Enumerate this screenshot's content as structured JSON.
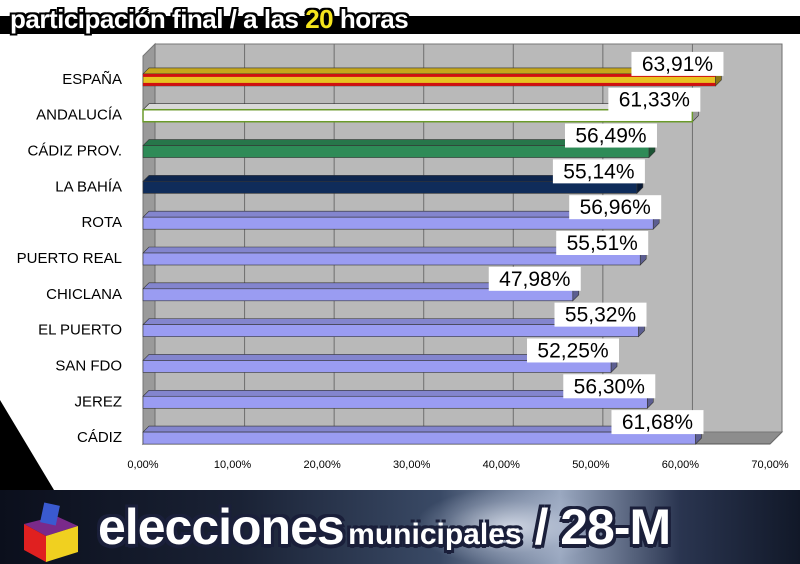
{
  "header": {
    "title_pre": "participación final / a las ",
    "title_highlight": "20",
    "title_post": " horas"
  },
  "footer": {
    "word_big": "elecciones",
    "word_mid": "municipales",
    "suffix": " / 28-M"
  },
  "colors": {
    "espana": "#e8c320",
    "andalucia": "#ffffff",
    "cadiz_prov": "#2e8b57",
    "la_bahia": "#0f2c5a",
    "municipios": "#9a9cf2",
    "plot_back": "#b9b9b9"
  },
  "chart_data": {
    "type": "bar",
    "orientation": "horizontal",
    "categories": [
      "ESPAÑA",
      "ANDALUCÍA",
      "CÁDIZ PROV.",
      "LA BAHÍA",
      "ROTA",
      "PUERTO REAL",
      "CHICLANA",
      "EL PUERTO",
      "SAN FDO",
      "JEREZ",
      "CÁDIZ"
    ],
    "values": [
      63.91,
      61.33,
      56.49,
      55.14,
      56.96,
      55.51,
      47.98,
      55.32,
      52.25,
      56.3,
      61.68
    ],
    "data_labels": [
      "63,91%",
      "61,33%",
      "56,49%",
      "55,14%",
      "56,96%",
      "55,51%",
      "47,98%",
      "55,32%",
      "52,25%",
      "56,30%",
      "61,68%"
    ],
    "bar_colors": [
      "#e8c320",
      "#ffffff",
      "#2e8b57",
      "#0f2c5a",
      "#9a9cf2",
      "#9a9cf2",
      "#9a9cf2",
      "#9a9cf2",
      "#9a9cf2",
      "#9a9cf2",
      "#9a9cf2"
    ],
    "x_ticks": [
      "0,00%",
      "10,00%",
      "20,00%",
      "30,00%",
      "40,00%",
      "50,00%",
      "60,00%",
      "70,00%"
    ],
    "xlim": [
      0,
      70
    ],
    "grid": true,
    "legend": "none",
    "title": "",
    "xlabel": "",
    "ylabel": ""
  }
}
